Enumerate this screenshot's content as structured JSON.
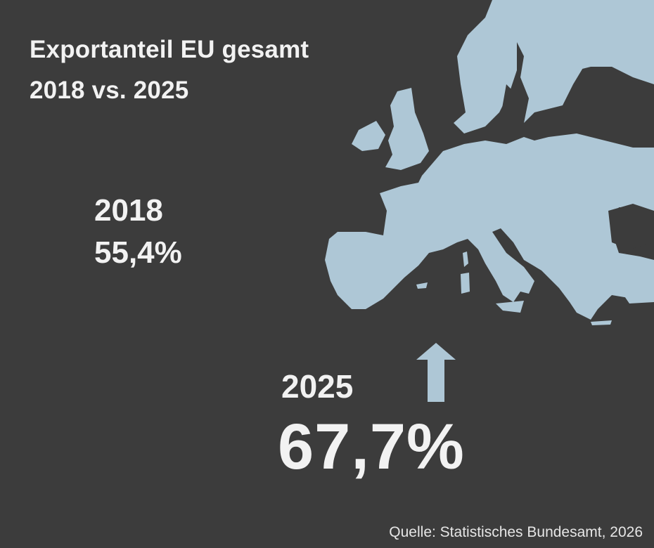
{
  "title": {
    "line1": "Exportanteil EU gesamt",
    "line2": "2018 vs. 2025"
  },
  "year_2018": {
    "label": "2018",
    "value": "55,4%"
  },
  "year_2025": {
    "label": "2025",
    "value": "67,7%"
  },
  "source": "Quelle: Statistisches Bundesamt, 2026",
  "colors": {
    "background": "#3c3c3c",
    "map": "#aec7d6",
    "text": "#f2f2f2"
  },
  "icons": {
    "trend": "arrow-up-icon",
    "map": "europe-map"
  }
}
